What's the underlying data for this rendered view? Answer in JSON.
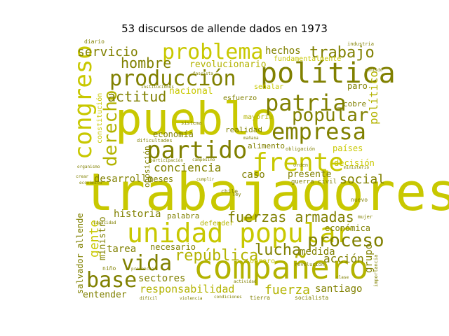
{
  "figure": {
    "title": "53 discursos de allende dados en 1973"
  },
  "cloud": {
    "words": [
      {
        "text": "trabajadores",
        "color": "#c8c800"
      },
      {
        "text": "pueblo",
        "color": "#c8c800"
      },
      {
        "text": "compañero",
        "color": "#b3b300"
      },
      {
        "text": "unidad popular",
        "color": "#c8c800"
      },
      {
        "text": "política",
        "color": "#808000"
      },
      {
        "text": "frente",
        "color": "#c8c800"
      },
      {
        "text": "empresa",
        "color": "#808000"
      },
      {
        "text": "partido",
        "color": "#808000"
      },
      {
        "text": "producción",
        "color": "#808000"
      },
      {
        "text": "problema",
        "color": "#c8c800"
      },
      {
        "text": "patria",
        "color": "#808000"
      },
      {
        "text": "congreso",
        "color": "#c8c800"
      },
      {
        "text": "popular",
        "color": "#808000"
      },
      {
        "text": "derecho",
        "color": "#b3b300"
      },
      {
        "text": "proceso",
        "color": "#808000"
      },
      {
        "text": "vida",
        "color": "#808000"
      },
      {
        "text": "base",
        "color": "#808000"
      },
      {
        "text": "fuerzas armadas",
        "color": "#808000"
      },
      {
        "text": "república",
        "color": "#b3b300"
      },
      {
        "text": "lucha",
        "color": "#808000"
      },
      {
        "text": "conciencia",
        "color": "#808000"
      },
      {
        "text": "trabajo",
        "color": "#808000"
      },
      {
        "text": "social",
        "color": "#808000"
      },
      {
        "text": "hombre",
        "color": "#808000"
      },
      {
        "text": "actitud",
        "color": "#808000"
      },
      {
        "text": "fuerza",
        "color": "#b3b300"
      },
      {
        "text": "servicio",
        "color": "#808000"
      },
      {
        "text": "político",
        "color": "#b3b300"
      },
      {
        "text": "acción",
        "color": "#808000"
      },
      {
        "text": "gente",
        "color": "#c8c800"
      },
      {
        "text": "responsabilidad",
        "color": "#b3b300"
      },
      {
        "text": "historia",
        "color": "#808000"
      },
      {
        "text": "desarrollo",
        "color": "#808000"
      },
      {
        "text": "sectores",
        "color": "#808000"
      },
      {
        "text": "tarea",
        "color": "#808000"
      },
      {
        "text": "medida",
        "color": "#808000"
      },
      {
        "text": "santiago",
        "color": "#808000"
      },
      {
        "text": "económica",
        "color": "#808000"
      },
      {
        "text": "economía",
        "color": "#808000"
      },
      {
        "text": "países",
        "color": "#c8c800"
      },
      {
        "text": "decisión",
        "color": "#c8c800"
      },
      {
        "text": "nacional",
        "color": "#c8c800"
      },
      {
        "text": "hechos",
        "color": "#808000"
      },
      {
        "text": "revolucionario",
        "color": "#b3b300"
      },
      {
        "text": "presente",
        "color": "#808000"
      },
      {
        "text": "caso",
        "color": "#808000"
      },
      {
        "text": "meses",
        "color": "#808000"
      },
      {
        "text": "palabra",
        "color": "#808000"
      },
      {
        "text": "necesario",
        "color": "#808000"
      },
      {
        "text": "entender",
        "color": "#808000"
      },
      {
        "text": "grupo",
        "color": "#808000"
      },
      {
        "text": "ministro",
        "color": "#808000"
      },
      {
        "text": "oposición",
        "color": "#808000"
      },
      {
        "text": "constitución",
        "color": "#c8c800"
      },
      {
        "text": "salvador allende",
        "color": "#808000"
      },
      {
        "text": "alimento",
        "color": "#808000"
      },
      {
        "text": "realidad",
        "color": "#808000"
      },
      {
        "text": "fundamentalmente",
        "color": "#c8c800"
      },
      {
        "text": "paro",
        "color": "#808000"
      },
      {
        "text": "cobre",
        "color": "#808000"
      },
      {
        "text": "esfuerzo",
        "color": "#808000"
      },
      {
        "text": "mayoría",
        "color": "#b3b300"
      },
      {
        "text": "señalar",
        "color": "#c8c800"
      },
      {
        "text": "obrero",
        "color": "#c8c800"
      },
      {
        "text": "defender",
        "color": "#b3b300"
      },
      {
        "text": "guerra civil",
        "color": "#808000"
      },
      {
        "text": "chile",
        "color": "#808000"
      },
      {
        "text": "nuevo",
        "color": "#808000"
      },
      {
        "text": "diario",
        "color": "#808000"
      },
      {
        "text": "sistema",
        "color": "#808000"
      },
      {
        "text": "niño",
        "color": "#808000"
      },
      {
        "text": "mujer",
        "color": "#808000"
      },
      {
        "text": "ley",
        "color": "#808000"
      },
      {
        "text": "tierra",
        "color": "#808000"
      },
      {
        "text": "socialista",
        "color": "#808000"
      },
      {
        "text": "revolución",
        "color": "#808000"
      },
      {
        "text": "dificultades",
        "color": "#808000"
      },
      {
        "text": "orden",
        "color": "#808000"
      },
      {
        "text": "obligación",
        "color": "#808000"
      },
      {
        "text": "importancia",
        "color": "#808000"
      },
      {
        "text": "mañana",
        "color": "#808000"
      },
      {
        "text": "fascista",
        "color": "#808000"
      },
      {
        "text": "industria",
        "color": "#808000"
      },
      {
        "text": "capacidad",
        "color": "#808000"
      },
      {
        "text": "condiciones",
        "color": "#808000"
      },
      {
        "text": "violencia",
        "color": "#808000"
      },
      {
        "text": "organismo",
        "color": "#808000"
      },
      {
        "text": "económico",
        "color": "#808000"
      },
      {
        "text": "instituciones",
        "color": "#808000"
      },
      {
        "text": "participación",
        "color": "#808000"
      },
      {
        "text": "campesino",
        "color": "#808000"
      },
      {
        "text": "cumplir",
        "color": "#808000"
      },
      {
        "text": "presencia",
        "color": "#808000"
      },
      {
        "text": "actividad",
        "color": "#808000"
      },
      {
        "text": "ministerio",
        "color": "#808000"
      },
      {
        "text": "crear",
        "color": "#808000"
      },
      {
        "text": "clase",
        "color": "#808000"
      },
      {
        "text": "sentido",
        "color": "#808000"
      },
      {
        "text": "difícil",
        "color": "#808000"
      }
    ]
  }
}
